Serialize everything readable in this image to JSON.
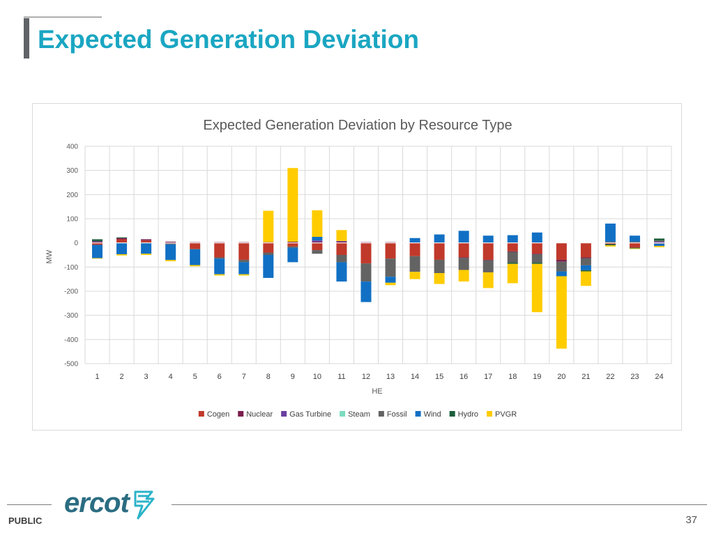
{
  "slide": {
    "title": "Expected Generation Deviation",
    "footer_label": "PUBLIC",
    "page_number": "37",
    "logo_text": "ercot",
    "accent_color": "#1aa6c2"
  },
  "chart_data": {
    "type": "bar",
    "stacked": true,
    "title": "Expected Generation Deviation by Resource Type",
    "xlabel": "HE",
    "ylabel": "MW",
    "ylim": [
      -500,
      400
    ],
    "yticks": [
      400,
      300,
      200,
      100,
      0,
      -100,
      -200,
      -300,
      -400,
      -500
    ],
    "grid": true,
    "legend_position": "bottom",
    "categories": [
      "1",
      "2",
      "3",
      "4",
      "5",
      "6",
      "7",
      "8",
      "9",
      "10",
      "11",
      "12",
      "13",
      "14",
      "15",
      "16",
      "17",
      "18",
      "19",
      "20",
      "21",
      "22",
      "23",
      "24"
    ],
    "series": [
      {
        "name": "Cogen",
        "color": "#c0392b",
        "values": [
          -8,
          15,
          10,
          -3,
          -25,
          -60,
          -70,
          -40,
          -15,
          -30,
          -50,
          -85,
          -65,
          -55,
          -70,
          -60,
          -70,
          -35,
          -45,
          -70,
          -60,
          -5,
          -20,
          -3
        ]
      },
      {
        "name": "Nuclear",
        "color": "#7b1f4e",
        "values": [
          5,
          5,
          5,
          5,
          3,
          3,
          3,
          3,
          5,
          5,
          5,
          3,
          3,
          0,
          0,
          -2,
          -2,
          -2,
          -2,
          -8,
          -3,
          0,
          0,
          0
        ]
      },
      {
        "name": "Gas Turbine",
        "color": "#6b3fa0",
        "values": [
          2,
          0,
          0,
          0,
          0,
          0,
          0,
          0,
          0,
          5,
          3,
          0,
          0,
          0,
          0,
          0,
          0,
          0,
          0,
          0,
          0,
          0,
          0,
          5
        ]
      },
      {
        "name": "Steam",
        "color": "#7ddcc0",
        "values": [
          0,
          0,
          0,
          0,
          0,
          0,
          0,
          0,
          0,
          0,
          0,
          0,
          0,
          0,
          0,
          0,
          0,
          0,
          0,
          0,
          0,
          0,
          0,
          0
        ]
      },
      {
        "name": "Fossil",
        "color": "#636363",
        "values": [
          0,
          0,
          0,
          -3,
          -2,
          -5,
          -10,
          -10,
          -5,
          -15,
          -30,
          -75,
          -75,
          -65,
          -55,
          -50,
          -50,
          -45,
          -35,
          -40,
          -30,
          5,
          5,
          5
        ]
      },
      {
        "name": "Wind",
        "color": "#1170c4",
        "values": [
          -55,
          -47,
          -45,
          -65,
          -65,
          -65,
          -50,
          -95,
          -60,
          15,
          -80,
          -85,
          -25,
          20,
          35,
          50,
          30,
          32,
          43,
          -20,
          -20,
          75,
          25,
          -10
        ]
      },
      {
        "name": "Hydro",
        "color": "#1b5e3b",
        "values": [
          8,
          3,
          0,
          0,
          0,
          0,
          0,
          0,
          0,
          0,
          0,
          0,
          0,
          0,
          0,
          0,
          0,
          -5,
          -5,
          0,
          -5,
          -5,
          -3,
          8
        ]
      },
      {
        "name": "PVGR",
        "color": "#ffcc00",
        "values": [
          -2,
          -5,
          -5,
          -5,
          -5,
          -5,
          -5,
          130,
          305,
          110,
          45,
          0,
          -10,
          -30,
          -45,
          -48,
          -65,
          -80,
          -200,
          -300,
          -60,
          -5,
          -2,
          -5
        ]
      }
    ]
  }
}
